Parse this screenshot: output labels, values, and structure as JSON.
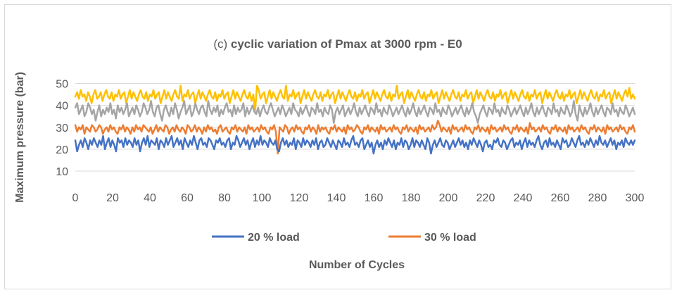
{
  "chart_data": {
    "type": "line",
    "title_prefix": "(c) ",
    "title_main": "cyclic variation of Pmax at 3000 rpm - E0",
    "xlabel": "Number of Cycles",
    "ylabel": "Maximum pressure (bar)",
    "xlim": [
      0,
      300
    ],
    "ylim": [
      10,
      55
    ],
    "x_ticks": [
      "0",
      "20",
      "40",
      "60",
      "80",
      "100",
      "120",
      "140",
      "160",
      "180",
      "200",
      "220",
      "240",
      "260",
      "280",
      "300"
    ],
    "y_ticks": [
      "10",
      "20",
      "30",
      "40",
      "50"
    ],
    "grid": true,
    "legend_placement": "bottom",
    "legend": [
      "20 % load",
      "30 % load"
    ],
    "series": [
      {
        "name": "20 % load",
        "color": "#4472c4",
        "values": [
          24,
          19,
          22,
          24,
          21,
          25,
          23,
          20,
          24,
          22,
          25,
          23,
          21,
          24,
          22,
          26,
          20,
          23,
          25,
          21,
          24,
          22,
          19,
          25,
          23,
          24,
          21,
          25,
          22,
          24,
          23,
          21,
          25,
          22,
          24,
          19,
          23,
          25,
          22,
          26,
          21,
          24,
          23,
          22,
          25,
          20,
          24,
          23,
          21,
          25,
          22,
          24,
          26,
          21,
          23,
          25,
          22,
          24,
          20,
          25,
          23,
          21,
          24,
          22,
          26,
          23,
          20,
          24,
          25,
          22,
          23,
          21,
          25,
          24,
          22,
          20,
          24,
          23,
          25,
          22,
          23,
          21,
          24,
          25,
          20,
          23,
          22,
          26,
          24,
          21,
          23,
          25,
          22,
          24,
          20,
          23,
          25,
          21,
          24,
          22,
          26,
          22,
          24,
          23,
          21,
          25,
          23,
          22,
          24,
          20,
          19,
          23,
          25,
          22,
          24,
          21,
          23,
          22,
          25,
          20,
          24,
          23,
          21,
          25,
          22,
          24,
          23,
          21,
          24,
          22,
          25,
          20,
          23,
          24,
          21,
          22,
          25,
          23,
          21,
          24,
          22,
          20,
          24,
          23,
          21,
          25,
          22,
          23,
          21,
          24,
          26,
          22,
          23,
          21,
          24,
          25,
          20,
          22,
          24,
          21,
          23,
          18,
          22,
          24,
          21,
          23,
          20,
          24,
          22,
          25,
          23,
          21,
          24,
          20,
          23,
          22,
          25,
          21,
          24,
          23,
          20,
          22,
          25,
          21,
          24,
          23,
          21,
          24,
          22,
          20,
          25,
          23,
          18,
          22,
          24,
          21,
          23,
          25,
          22,
          21,
          24,
          23,
          20,
          22,
          24,
          21,
          23,
          25,
          22,
          24,
          21,
          23,
          20,
          24,
          22,
          25,
          23,
          21,
          24,
          22,
          19,
          23,
          24,
          21,
          22,
          20,
          24,
          23,
          25,
          22,
          21,
          24,
          23,
          20,
          22,
          24,
          25,
          21,
          23,
          22,
          24,
          20,
          23,
          25,
          21,
          24,
          22,
          23,
          21,
          24,
          26,
          22,
          20,
          23,
          24,
          21,
          25,
          22,
          23,
          21,
          24,
          22,
          20,
          25,
          23,
          24,
          21,
          22,
          25,
          23,
          21,
          24,
          26,
          22,
          23,
          21,
          24,
          22,
          25,
          23,
          21,
          24,
          22,
          26,
          23,
          22,
          24,
          21,
          23,
          25,
          22,
          24,
          20,
          23,
          22,
          24,
          21,
          25,
          23,
          22,
          24,
          22,
          24
        ]
      },
      {
        "name": "30 % load",
        "color": "#ed7d31",
        "values": [
          31,
          28,
          30,
          29,
          31,
          27,
          30,
          29,
          28,
          31,
          30,
          28,
          29,
          31,
          30,
          27,
          29,
          30,
          28,
          31,
          29,
          30,
          28,
          27,
          30,
          29,
          31,
          28,
          30,
          29,
          27,
          30,
          28,
          31,
          29,
          30,
          28,
          31,
          30,
          29,
          28,
          30,
          27,
          29,
          31,
          28,
          30,
          29,
          28,
          31,
          30,
          27,
          29,
          30,
          28,
          31,
          29,
          28,
          30,
          29,
          27,
          31,
          30,
          28,
          29,
          31,
          28,
          30,
          29,
          27,
          30,
          28,
          31,
          29,
          30,
          28,
          29,
          27,
          30,
          31,
          28,
          29,
          30,
          28,
          27,
          30,
          29,
          31,
          28,
          30,
          29,
          28,
          30,
          27,
          31,
          29,
          30,
          28,
          29,
          30,
          28,
          31,
          29,
          30,
          28,
          27,
          30,
          29,
          31,
          28,
          18,
          30,
          29,
          28,
          31,
          30,
          27,
          29,
          30,
          28,
          31,
          29,
          30,
          28,
          27,
          30,
          29,
          31,
          28,
          30,
          29,
          27,
          31,
          28,
          30,
          29,
          30,
          28,
          27,
          30,
          29,
          31,
          28,
          30,
          29,
          28,
          30,
          27,
          31,
          29,
          30,
          28,
          29,
          31,
          30,
          28,
          27,
          30,
          29,
          31,
          28,
          30,
          29,
          28,
          30,
          27,
          31,
          29,
          30,
          28,
          29,
          30,
          28,
          31,
          29,
          30,
          28,
          27,
          30,
          29,
          31,
          28,
          30,
          29,
          28,
          30,
          27,
          31,
          29,
          30,
          28,
          29,
          30,
          28,
          31,
          29,
          30,
          33,
          31,
          28,
          30,
          29,
          28,
          30,
          27,
          31,
          29,
          30,
          28,
          29,
          30,
          28,
          31,
          29,
          30,
          28,
          27,
          30,
          29,
          31,
          28,
          30,
          29,
          28,
          30,
          27,
          31,
          29,
          30,
          28,
          29,
          30,
          28,
          31,
          29,
          30,
          28,
          27,
          30,
          29,
          31,
          28,
          30,
          29,
          28,
          30,
          27,
          32,
          29,
          30,
          28,
          29,
          30,
          28,
          31,
          29,
          30,
          28,
          27,
          30,
          29,
          31,
          28,
          30,
          29,
          28,
          30,
          27,
          31,
          29,
          30,
          28,
          29,
          30,
          28,
          31,
          29,
          30,
          28,
          27,
          30,
          29,
          31,
          28,
          30,
          29,
          28,
          30,
          27,
          31,
          29,
          30,
          28,
          29,
          30,
          28,
          31,
          29,
          30,
          28,
          27,
          30,
          29,
          31,
          28
        ]
      },
      {
        "name": "",
        "color": "#a5a5a5",
        "values": [
          39,
          41,
          36,
          38,
          40,
          35,
          37,
          41,
          39,
          36,
          38,
          33,
          37,
          40,
          35,
          38,
          36,
          39,
          37,
          41,
          36,
          38,
          34,
          40,
          37,
          39,
          36,
          38,
          41,
          35,
          37,
          39,
          36,
          40,
          38,
          35,
          37,
          41,
          39,
          36,
          38,
          42,
          37,
          35,
          39,
          40,
          36,
          33,
          38,
          40,
          37,
          35,
          39,
          36,
          41,
          38,
          34,
          37,
          39,
          42,
          36,
          38,
          40,
          35,
          37,
          41,
          38,
          36,
          39,
          40,
          37,
          35,
          42,
          38,
          36,
          39,
          37,
          40,
          35,
          38,
          36,
          39,
          41,
          37,
          38,
          35,
          40,
          36,
          39,
          37,
          38,
          41,
          35,
          39,
          36,
          38,
          40,
          37,
          36,
          39,
          35,
          38,
          40,
          37,
          36,
          39,
          41,
          38,
          35,
          37,
          39,
          36,
          40,
          38,
          35,
          37,
          39,
          36,
          41,
          38,
          37,
          35,
          39,
          36,
          38,
          40,
          37,
          35,
          39,
          38,
          36,
          41,
          37,
          38,
          35,
          39,
          37,
          36,
          40,
          38,
          32,
          37,
          39,
          36,
          38,
          40,
          35,
          37,
          39,
          36,
          38,
          41,
          37,
          35,
          39,
          36,
          38,
          40,
          37,
          35,
          39,
          38,
          36,
          41,
          37,
          38,
          35,
          39,
          37,
          36,
          40,
          38,
          35,
          37,
          39,
          36,
          38,
          40,
          37,
          35,
          39,
          36,
          38,
          41,
          37,
          35,
          39,
          36,
          38,
          40,
          37,
          35,
          39,
          38,
          36,
          41,
          37,
          38,
          35,
          39,
          37,
          36,
          40,
          38,
          35,
          37,
          39,
          36,
          38,
          40,
          37,
          35,
          39,
          36,
          38,
          41,
          37,
          35,
          32,
          36,
          38,
          40,
          37,
          35,
          39,
          38,
          36,
          41,
          37,
          38,
          35,
          39,
          37,
          36,
          40,
          38,
          35,
          37,
          39,
          36,
          38,
          40,
          37,
          35,
          39,
          36,
          38,
          41,
          37,
          35,
          39,
          36,
          38,
          40,
          37,
          35,
          39,
          38,
          36,
          41,
          37,
          38,
          35,
          39,
          37,
          36,
          40,
          38,
          35,
          37,
          42,
          36,
          33,
          40,
          37,
          35,
          39,
          36,
          38,
          41,
          37,
          35,
          39,
          36,
          38,
          40,
          37,
          35,
          39,
          38,
          36,
          41,
          37,
          38,
          35,
          39,
          37,
          36,
          40,
          38,
          35,
          37,
          39,
          36
        ]
      },
      {
        "name": "",
        "color": "#ffc000",
        "values": [
          44,
          46,
          43,
          47,
          44,
          45,
          42,
          46,
          44,
          41,
          45,
          47,
          43,
          44,
          46,
          42,
          45,
          47,
          44,
          43,
          46,
          42,
          45,
          44,
          47,
          43,
          45,
          46,
          41,
          44,
          47,
          43,
          46,
          44,
          42,
          45,
          47,
          44,
          43,
          46,
          42,
          45,
          44,
          47,
          43,
          45,
          46,
          41,
          44,
          47,
          43,
          46,
          44,
          42,
          45,
          47,
          44,
          43,
          49,
          42,
          45,
          44,
          47,
          43,
          45,
          46,
          41,
          44,
          47,
          43,
          46,
          44,
          42,
          45,
          47,
          44,
          43,
          46,
          42,
          45,
          44,
          47,
          43,
          45,
          46,
          41,
          44,
          47,
          43,
          46,
          44,
          42,
          45,
          47,
          44,
          43,
          46,
          42,
          45,
          37,
          49,
          47,
          43,
          45,
          46,
          41,
          44,
          47,
          43,
          46,
          44,
          42,
          45,
          47,
          44,
          43,
          49,
          42,
          45,
          44,
          47,
          43,
          45,
          46,
          41,
          44,
          47,
          43,
          46,
          44,
          42,
          45,
          47,
          44,
          43,
          46,
          42,
          45,
          44,
          47,
          43,
          45,
          46,
          41,
          44,
          47,
          43,
          46,
          44,
          42,
          45,
          47,
          44,
          43,
          46,
          42,
          45,
          44,
          47,
          43,
          45,
          46,
          41,
          44,
          47,
          43,
          46,
          44,
          42,
          45,
          47,
          44,
          43,
          46,
          42,
          45,
          44,
          49,
          43,
          45,
          46,
          41,
          44,
          47,
          43,
          46,
          44,
          42,
          45,
          47,
          44,
          43,
          46,
          42,
          45,
          44,
          47,
          43,
          45,
          46,
          41,
          44,
          47,
          43,
          46,
          44,
          42,
          45,
          47,
          44,
          43,
          46,
          42,
          45,
          44,
          47,
          43,
          45,
          46,
          41,
          44,
          47,
          43,
          46,
          44,
          42,
          45,
          47,
          44,
          43,
          46,
          42,
          45,
          44,
          47,
          43,
          45,
          46,
          41,
          44,
          47,
          43,
          46,
          44,
          42,
          45,
          47,
          44,
          43,
          46,
          42,
          45,
          44,
          47,
          43,
          45,
          46,
          41,
          44,
          47,
          43,
          46,
          44,
          42,
          45,
          47,
          44,
          43,
          46,
          42,
          45,
          44,
          47,
          43,
          45,
          46,
          41,
          44,
          47,
          43,
          46,
          44,
          42,
          45,
          47,
          44,
          43,
          46,
          42,
          45,
          44,
          47,
          43,
          45,
          46,
          41,
          44,
          47,
          43,
          46,
          44,
          42,
          45,
          47,
          44,
          48,
          43,
          45,
          43
        ]
      }
    ]
  }
}
